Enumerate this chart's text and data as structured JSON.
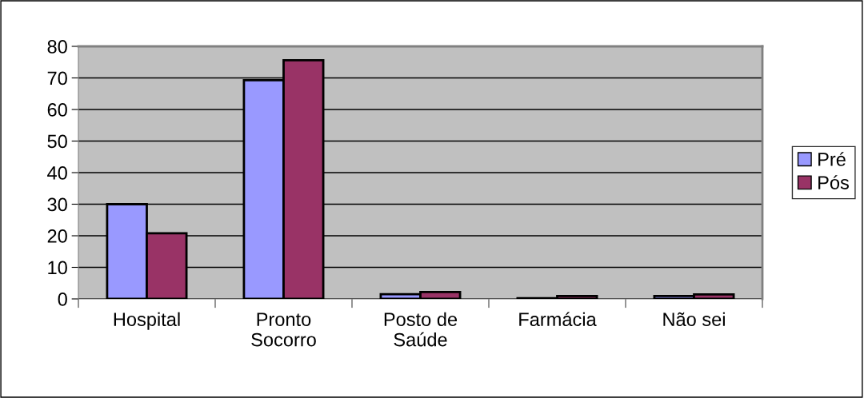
{
  "chart_data": {
    "type": "bar",
    "categories": [
      "Hospital",
      "Pronto\nSocorro",
      "Posto de\nSaúde",
      "Farmácia",
      "Não sei"
    ],
    "series": [
      {
        "name": "Pré",
        "color": "#9999ff",
        "values": [
          30,
          69.3,
          1.5,
          0.2,
          0.9
        ]
      },
      {
        "name": "Pós",
        "color": "#993366",
        "values": [
          20.8,
          75.6,
          2.2,
          0.9,
          1.4
        ]
      }
    ],
    "ylim": [
      0,
      80
    ],
    "yticks": [
      0,
      10,
      20,
      30,
      40,
      50,
      60,
      70,
      80
    ],
    "grid": "y",
    "legend": "right"
  }
}
